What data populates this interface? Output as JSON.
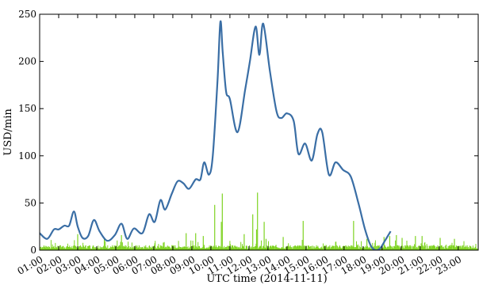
{
  "chart_data": {
    "type": "line",
    "title": "",
    "xlabel": "UTC time (2014-11-11)",
    "ylabel": "USD/min",
    "xlim": [
      0.0,
      23.05
    ],
    "ylim": [
      0,
      250
    ],
    "y_ticks": [
      0,
      50,
      100,
      150,
      200,
      250
    ],
    "x_ticks": [
      {
        "value": 0.0,
        "label": "01:00"
      },
      {
        "value": 1.0,
        "label": "02:00"
      },
      {
        "value": 2.0,
        "label": "03:00"
      },
      {
        "value": 3.0,
        "label": "04:00"
      },
      {
        "value": 4.0,
        "label": "05:00"
      },
      {
        "value": 5.0,
        "label": "06:00"
      },
      {
        "value": 6.0,
        "label": "07:00"
      },
      {
        "value": 7.0,
        "label": "08:00"
      },
      {
        "value": 8.0,
        "label": "09:00"
      },
      {
        "value": 9.0,
        "label": "10:00"
      },
      {
        "value": 10.0,
        "label": "11:00"
      },
      {
        "value": 11.0,
        "label": "12:00"
      },
      {
        "value": 12.0,
        "label": "13:00"
      },
      {
        "value": 13.0,
        "label": "14:00"
      },
      {
        "value": 14.0,
        "label": "15:00"
      },
      {
        "value": 15.0,
        "label": "16:00"
      },
      {
        "value": 16.0,
        "label": "17:00"
      },
      {
        "value": 17.0,
        "label": "18:00"
      },
      {
        "value": 18.0,
        "label": "19:00"
      },
      {
        "value": 19.0,
        "label": "20:00"
      },
      {
        "value": 20.0,
        "label": "21:00"
      },
      {
        "value": 21.0,
        "label": "22:00"
      },
      {
        "value": 22.0,
        "label": "23:00"
      }
    ],
    "grid": false,
    "series": [
      {
        "kind": "smooth-line",
        "color": "#3a6ea5",
        "points": [
          [
            0.0,
            18
          ],
          [
            0.4,
            12
          ],
          [
            0.75,
            22
          ],
          [
            1.0,
            22
          ],
          [
            1.3,
            26
          ],
          [
            1.55,
            26
          ],
          [
            1.8,
            41
          ],
          [
            2.0,
            25
          ],
          [
            2.25,
            13
          ],
          [
            2.55,
            15
          ],
          [
            2.85,
            32
          ],
          [
            3.15,
            20
          ],
          [
            3.55,
            10
          ],
          [
            3.95,
            16
          ],
          [
            4.3,
            28
          ],
          [
            4.6,
            12
          ],
          [
            4.95,
            23
          ],
          [
            5.4,
            18
          ],
          [
            5.75,
            38
          ],
          [
            6.05,
            30
          ],
          [
            6.35,
            53
          ],
          [
            6.6,
            43
          ],
          [
            6.95,
            60
          ],
          [
            7.25,
            73
          ],
          [
            7.55,
            71
          ],
          [
            7.85,
            65
          ],
          [
            8.2,
            75
          ],
          [
            8.45,
            75
          ],
          [
            8.65,
            93
          ],
          [
            8.9,
            80
          ],
          [
            9.1,
            100
          ],
          [
            9.35,
            180
          ],
          [
            9.5,
            242
          ],
          [
            9.62,
            210
          ],
          [
            9.8,
            168
          ],
          [
            10.0,
            160
          ],
          [
            10.4,
            125
          ],
          [
            10.8,
            170
          ],
          [
            11.05,
            200
          ],
          [
            11.35,
            237
          ],
          [
            11.55,
            207
          ],
          [
            11.75,
            240
          ],
          [
            12.1,
            190
          ],
          [
            12.45,
            147
          ],
          [
            12.7,
            140
          ],
          [
            13.0,
            145
          ],
          [
            13.35,
            137
          ],
          [
            13.6,
            102
          ],
          [
            13.95,
            113
          ],
          [
            14.3,
            95
          ],
          [
            14.6,
            123
          ],
          [
            14.85,
            125
          ],
          [
            15.2,
            80
          ],
          [
            15.55,
            93
          ],
          [
            15.95,
            85
          ],
          [
            16.35,
            78
          ],
          [
            16.75,
            50
          ],
          [
            17.1,
            22
          ],
          [
            17.4,
            5
          ],
          [
            17.65,
            0
          ],
          [
            17.9,
            2
          ],
          [
            18.15,
            10
          ],
          [
            18.45,
            20
          ]
        ]
      },
      {
        "kind": "spikes",
        "color": "#7ed321",
        "baseline": 4,
        "x_start": 0.05,
        "x_end": 23.0,
        "peaks": [
          [
            2.0,
            17
          ],
          [
            3.4,
            12
          ],
          [
            4.3,
            16
          ],
          [
            6.5,
            8
          ],
          [
            7.7,
            18
          ],
          [
            8.2,
            18
          ],
          [
            8.6,
            15
          ],
          [
            9.2,
            48
          ],
          [
            9.55,
            30
          ],
          [
            9.6,
            60
          ],
          [
            10.75,
            17
          ],
          [
            11.2,
            38
          ],
          [
            11.4,
            22
          ],
          [
            11.45,
            61
          ],
          [
            11.8,
            30
          ],
          [
            11.9,
            12
          ],
          [
            12.8,
            14
          ],
          [
            13.85,
            31
          ],
          [
            16.5,
            31
          ],
          [
            17.2,
            12
          ],
          [
            18.1,
            14
          ],
          [
            18.4,
            15
          ],
          [
            18.75,
            16
          ],
          [
            19.05,
            13
          ],
          [
            19.75,
            15
          ],
          [
            20.1,
            15
          ],
          [
            21.05,
            13
          ],
          [
            21.8,
            12
          ]
        ]
      }
    ]
  }
}
